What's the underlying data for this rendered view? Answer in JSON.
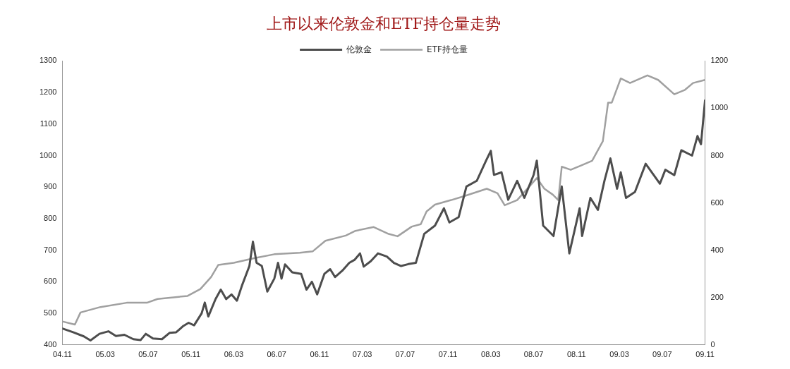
{
  "chart_data": {
    "type": "line",
    "title": "上市以来伦敦金和ETF持仓量走势",
    "series": [
      {
        "name": "伦敦金",
        "color": "#4d4d4d",
        "x": [
          "2004-11-01",
          "2004-12-01",
          "2005-01-01",
          "2005-01-20",
          "2005-02-15",
          "2005-03-10",
          "2005-04-01",
          "2005-04-25",
          "2005-05-20",
          "2005-06-10",
          "2005-06-25",
          "2005-07-15",
          "2005-08-10",
          "2005-09-01",
          "2005-09-20",
          "2005-10-10",
          "2005-10-25",
          "2005-11-10",
          "2005-12-01",
          "2005-12-10",
          "2005-12-20",
          "2006-01-10",
          "2006-01-25",
          "2006-02-10",
          "2006-02-25",
          "2006-03-10",
          "2006-03-25",
          "2006-04-15",
          "2006-04-25",
          "2006-05-05",
          "2006-05-20",
          "2006-06-05",
          "2006-06-25",
          "2006-07-05",
          "2006-07-15",
          "2006-07-25",
          "2006-08-15",
          "2006-09-10",
          "2006-09-25",
          "2006-10-10",
          "2006-10-25",
          "2006-11-15",
          "2006-12-01",
          "2006-12-15",
          "2007-01-05",
          "2007-01-25",
          "2007-02-10",
          "2007-02-25",
          "2007-03-05",
          "2007-03-25",
          "2007-04-15",
          "2007-05-10",
          "2007-05-30",
          "2007-06-20",
          "2007-07-10",
          "2007-08-01",
          "2007-08-25",
          "2007-09-25",
          "2007-10-20",
          "2007-11-05",
          "2007-12-01",
          "2007-12-23",
          "2008-01-22",
          "2008-02-18",
          "2008-03-01",
          "2008-03-10",
          "2008-04-01",
          "2008-04-20",
          "2008-05-15",
          "2008-06-05",
          "2008-07-01",
          "2008-07-10",
          "2008-07-28",
          "2008-08-27",
          "2008-09-20",
          "2008-10-11",
          "2008-11-10",
          "2008-11-17",
          "2008-12-10",
          "2009-01-01",
          "2009-01-20",
          "2009-02-06",
          "2009-02-25",
          "2009-03-05",
          "2009-03-20",
          "2009-04-15",
          "2009-05-15",
          "2009-06-25",
          "2009-07-10",
          "2009-08-05",
          "2009-08-25",
          "2009-09-25",
          "2009-10-10",
          "2009-10-20",
          "2009-11-01"
        ],
        "values": [
          452,
          440,
          427,
          414,
          435,
          443,
          428,
          432,
          418,
          415,
          435,
          420,
          418,
          438,
          440,
          460,
          470,
          462,
          500,
          534,
          490,
          545,
          575,
          545,
          560,
          540,
          590,
          650,
          727,
          660,
          650,
          569,
          610,
          660,
          610,
          655,
          630,
          625,
          575,
          600,
          560,
          625,
          640,
          615,
          635,
          660,
          670,
          690,
          648,
          665,
          690,
          680,
          660,
          650,
          656,
          660,
          752,
          778,
          833,
          788,
          805,
          902,
          920,
          984,
          1015,
          939,
          947,
          860,
          920,
          866,
          939,
          984,
          778,
          745,
          902,
          690,
          833,
          745,
          866,
          828,
          922,
          991,
          895,
          947,
          866,
          885,
          974,
          911,
          955,
          938,
          1017,
          1000,
          1062,
          1036,
          1175
        ]
      },
      {
        "name": "ETF持仓量",
        "color": "#a0a0a0",
        "axis": "y2",
        "x": [
          "2004-11-01",
          "2004-12-06",
          "2004-12-22",
          "2005-02-18",
          "2005-05-01",
          "2005-06-28",
          "2005-07-28",
          "2005-10-22",
          "2005-11-28",
          "2005-12-28",
          "2006-01-18",
          "2006-03-01",
          "2006-04-28",
          "2006-06-25",
          "2006-09-06",
          "2006-10-12",
          "2006-11-18",
          "2007-01-15",
          "2007-02-12",
          "2007-04-03",
          "2007-05-15",
          "2007-06-10",
          "2007-07-20",
          "2007-08-15",
          "2007-09-01",
          "2007-09-25",
          "2007-11-10",
          "2007-12-15",
          "2008-02-20",
          "2008-03-20",
          "2008-04-10",
          "2008-05-15",
          "2008-07-10",
          "2008-08-01",
          "2008-08-25",
          "2008-09-10",
          "2008-09-20",
          "2008-10-15",
          "2008-11-15",
          "2008-12-15",
          "2009-01-15",
          "2009-01-30",
          "2009-02-10",
          "2009-03-05",
          "2009-04-01",
          "2009-05-20",
          "2009-06-20",
          "2009-08-05",
          "2009-09-05",
          "2009-09-28",
          "2009-11-01"
        ],
        "values": [
          99,
          86,
          137,
          160,
          178,
          178,
          194,
          207,
          236,
          287,
          338,
          347,
          366,
          383,
          389,
          395,
          440,
          462,
          482,
          498,
          469,
          459,
          500,
          510,
          564,
          593,
          612,
          628,
          660,
          641,
          590,
          612,
          705,
          660,
          635,
          612,
          753,
          740,
          759,
          778,
          861,
          1024,
          1024,
          1126,
          1107,
          1139,
          1120,
          1059,
          1078,
          1107,
          1120
        ]
      }
    ],
    "xlim": [
      "2004-11",
      "2009-11"
    ],
    "xticks": [
      {
        "value": "2004-11",
        "label": "04.11"
      },
      {
        "value": "2005-03",
        "label": "05.03"
      },
      {
        "value": "2005-07",
        "label": "05.07"
      },
      {
        "value": "2005-11",
        "label": "05.11"
      },
      {
        "value": "2006-03",
        "label": "06.03"
      },
      {
        "value": "2006-07",
        "label": "06.07"
      },
      {
        "value": "2006-11",
        "label": "06.11"
      },
      {
        "value": "2007-03",
        "label": "07.03"
      },
      {
        "value": "2007-07",
        "label": "07.07"
      },
      {
        "value": "2007-11",
        "label": "07.11"
      },
      {
        "value": "2008-03",
        "label": "08.03"
      },
      {
        "value": "2008-07",
        "label": "08.07"
      },
      {
        "value": "2008-11",
        "label": "08.11"
      },
      {
        "value": "2009-03",
        "label": "09.03"
      },
      {
        "value": "2009-07",
        "label": "09.07"
      },
      {
        "value": "2009-11",
        "label": "09.11"
      }
    ],
    "ylim": [
      400,
      1300
    ],
    "yticks": [
      400,
      500,
      600,
      700,
      800,
      900,
      1000,
      1100,
      1200,
      1300
    ],
    "y2lim": [
      0,
      1200
    ],
    "y2ticks": [
      0,
      200,
      400,
      600,
      800,
      1000,
      1200
    ],
    "legend": "top",
    "marker": "none",
    "line_style": "solid"
  }
}
